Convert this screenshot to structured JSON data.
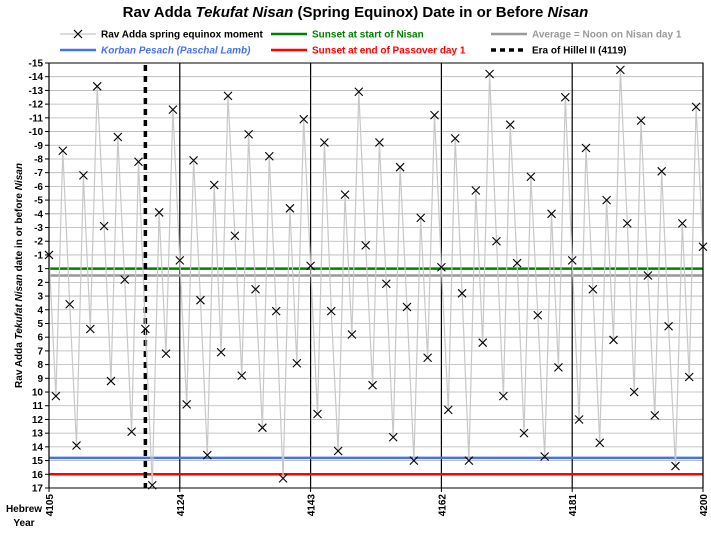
{
  "chart_data": {
    "type": "line",
    "title_parts": [
      "Rav Adda ",
      "Tekufat Nisan",
      " (Spring Equinox) Date in or Before ",
      "Nisan"
    ],
    "ylabel_parts": [
      "Rav Adda ",
      "Tekufat Nisan",
      " date in or before ",
      "Nisan"
    ],
    "xlabel_lines": [
      "Hebrew",
      "Year"
    ],
    "x_ticks": [
      4105,
      4124,
      4143,
      4162,
      4181,
      4200
    ],
    "xlim": [
      4105,
      4200
    ],
    "y_ticks": [
      -15,
      -14,
      -13,
      -12,
      -11,
      -10,
      -9,
      -8,
      -7,
      -6,
      -5,
      -4,
      -3,
      -2,
      -1,
      1,
      2,
      3,
      4,
      5,
      6,
      7,
      8,
      9,
      10,
      11,
      12,
      13,
      14,
      15,
      16,
      17
    ],
    "ylim": [
      -15,
      17
    ],
    "y_scale_note": "day -1 is immediately followed by day 1",
    "legend": [
      {
        "label": "Rav Adda spring equinox moment",
        "color": "#c8c8c8",
        "style": "marker-x",
        "italic": false
      },
      {
        "label": "Sunset at start of Nisan",
        "color": "#008000",
        "style": "solid",
        "italic": false
      },
      {
        "label": "Average = Noon on Nisan day 1",
        "color": "#999999",
        "style": "solid",
        "italic": false
      },
      {
        "label": "Korban Pesach (Paschal Lamb)",
        "color": "#4472e8",
        "style": "solid",
        "italic": true
      },
      {
        "label": "Sunset at end of Passover day 1",
        "color": "#ff0000",
        "style": "solid",
        "italic": false
      },
      {
        "label": "Era of Hillel II (4119)",
        "color": "#000000",
        "style": "dashed",
        "italic": false
      }
    ],
    "reference_lines": {
      "sunset_start_nisan": 1.0,
      "average_noon_nisan_day1": 1.5,
      "korban_pesach": 14.8,
      "sunset_end_passover_day1": 16.0,
      "hillel_era_year": 4119
    },
    "series": [
      {
        "name": "Rav Adda spring equinox moment",
        "x": [
          4105,
          4106,
          4107,
          4108,
          4109,
          4110,
          4111,
          4112,
          4113,
          4114,
          4115,
          4116,
          4117,
          4118,
          4119,
          4120,
          4121,
          4122,
          4123,
          4124,
          4125,
          4126,
          4127,
          4128,
          4129,
          4130,
          4131,
          4132,
          4133,
          4134,
          4135,
          4136,
          4137,
          4138,
          4139,
          4140,
          4141,
          4142,
          4143,
          4144,
          4145,
          4146,
          4147,
          4148,
          4149,
          4150,
          4151,
          4152,
          4153,
          4154,
          4155,
          4156,
          4157,
          4158,
          4159,
          4160,
          4161,
          4162,
          4163,
          4164,
          4165,
          4166,
          4167,
          4168,
          4169,
          4170,
          4171,
          4172,
          4173,
          4174,
          4175,
          4176,
          4177,
          4178,
          4179,
          4180,
          4181,
          4182,
          4183,
          4184,
          4185,
          4186,
          4187,
          4188,
          4189,
          4190,
          4191,
          4192,
          4193,
          4194,
          4195,
          4196,
          4197,
          4198,
          4199,
          4200
        ],
        "y": [
          -1.0,
          10.3,
          -8.6,
          3.6,
          13.9,
          -6.8,
          5.4,
          -13.3,
          -3.1,
          9.2,
          -9.6,
          1.8,
          12.9,
          -7.8,
          5.4,
          16.8,
          -4.1,
          7.2,
          -11.6,
          0.4,
          10.9,
          -7.9,
          3.3,
          14.6,
          -6.1,
          7.1,
          -12.6,
          -2.4,
          8.8,
          -9.8,
          2.5,
          12.6,
          -8.2,
          4.1,
          16.3,
          -4.4,
          7.9,
          -10.9,
          -0.2,
          11.6,
          -9.2,
          4.1,
          14.3,
          -5.4,
          5.8,
          -12.9,
          -1.7,
          9.5,
          -9.2,
          2.1,
          13.3,
          -7.4,
          3.8,
          15.0,
          -3.7,
          7.5,
          -11.2,
          0.9,
          11.3,
          -9.5,
          2.8,
          15.0,
          -5.7,
          6.4,
          -14.2,
          -2.0,
          10.3,
          -10.5,
          0.6,
          13.0,
          -6.7,
          4.4,
          14.7,
          -4.0,
          8.2,
          -12.5,
          0.4,
          12.0,
          -8.8,
          2.5,
          13.7,
          -5.0,
          6.2,
          -14.5,
          -3.3,
          10.0,
          -10.8,
          1.5,
          11.7,
          -7.1,
          5.2,
          15.4,
          -3.3,
          8.9,
          -11.8,
          -1.6
        ]
      }
    ]
  }
}
